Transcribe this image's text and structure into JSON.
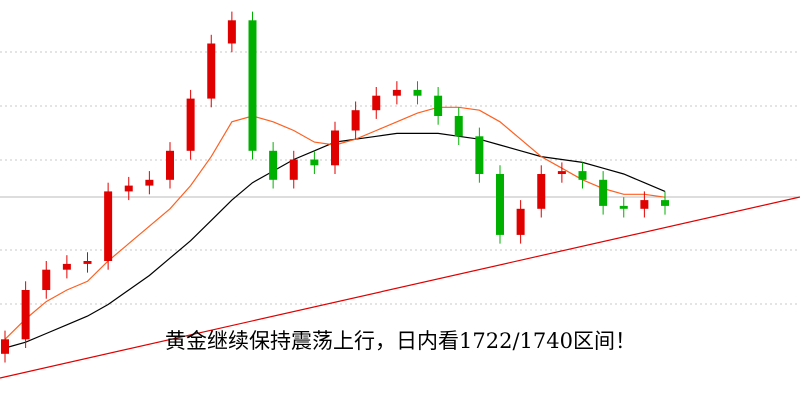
{
  "chart_data": {
    "type": "candlestick",
    "annotation": "黄金继续保持震荡上行，日内看1722/1740区间！",
    "ylim": [
      1660,
      1800
    ],
    "up_color": "#e00000",
    "down_color": "#00b000",
    "open": [
      1678,
      1683,
      1700,
      1707,
      1709,
      1710,
      1734,
      1736,
      1738,
      1748,
      1766,
      1785,
      1793,
      1748,
      1738,
      1745,
      1743,
      1755,
      1762,
      1767,
      1769,
      1767,
      1760,
      1753,
      1740,
      1719,
      1728,
      1740,
      1741,
      1738,
      1729,
      1728,
      1731
    ],
    "high": [
      1686,
      1703,
      1710,
      1712,
      1713,
      1737,
      1739,
      1741,
      1751,
      1769,
      1788,
      1796,
      1796,
      1751,
      1748,
      1748,
      1758,
      1765,
      1770,
      1772,
      1772,
      1770,
      1763,
      1756,
      1743,
      1731,
      1743,
      1744,
      1744,
      1741,
      1732,
      1734,
      1734
    ],
    "low": [
      1675,
      1680,
      1697,
      1704,
      1706,
      1707,
      1731,
      1733,
      1735,
      1745,
      1763,
      1782,
      1745,
      1735,
      1735,
      1740,
      1740,
      1752,
      1759,
      1764,
      1764,
      1757,
      1750,
      1737,
      1716,
      1716,
      1725,
      1737,
      1735,
      1726,
      1725,
      1725,
      1726
    ],
    "close": [
      1683,
      1700,
      1707,
      1709,
      1710,
      1734,
      1736,
      1738,
      1748,
      1766,
      1785,
      1793,
      1748,
      1738,
      1745,
      1743,
      1755,
      1762,
      1767,
      1769,
      1767,
      1760,
      1753,
      1740,
      1719,
      1728,
      1740,
      1741,
      1738,
      1729,
      1728,
      1731,
      1729
    ],
    "lines": [
      {
        "color": "#000000",
        "values": [
          1680,
          1682,
          1685,
          1688,
          1691,
          1695,
          1700,
          1705,
          1711,
          1717,
          1724,
          1731,
          1737,
          1741,
          1745,
          1748,
          1751,
          1752,
          1753,
          1754,
          1754,
          1754,
          1753,
          1752,
          1750,
          1748,
          1746,
          1745,
          1744,
          1742,
          1740,
          1737,
          1734
        ]
      },
      {
        "color": "#ff6020",
        "values": [
          1683,
          1690,
          1696,
          1700,
          1703,
          1710,
          1716,
          1722,
          1728,
          1736,
          1746,
          1758,
          1760,
          1758,
          1755,
          1751,
          1750,
          1752,
          1755,
          1758,
          1761,
          1763,
          1763,
          1762,
          1758,
          1752,
          1746,
          1742,
          1738,
          1735,
          1733,
          1733,
          1732
        ]
      }
    ]
  }
}
